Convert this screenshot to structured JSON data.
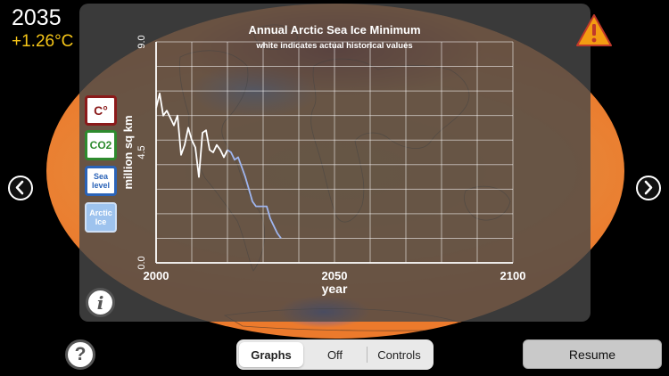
{
  "status": {
    "year": "2035",
    "temperature": "+1.26°C"
  },
  "icons": {
    "warning": "warning-triangle-icon",
    "prev": "chevron-left-icon",
    "next": "chevron-right-icon",
    "info": "info-icon",
    "help": "question-icon"
  },
  "variables": {
    "temp": "C°",
    "co2": "CO2",
    "sea": [
      "Sea",
      "level"
    ],
    "arctic": [
      "Arctic",
      "Ice"
    ]
  },
  "info_label": "i",
  "help_label": "?",
  "segments": {
    "graphs": "Graphs",
    "off": "Off",
    "controls": "Controls",
    "active": "Graphs"
  },
  "resume_label": "Resume",
  "colors": {
    "temperature": "#f5c518",
    "historical_line": "#ffffff",
    "projected_line": "#9fb6f0",
    "warning": "#f39c12"
  },
  "chart_data": {
    "type": "line",
    "title": "Annual Arctic Sea Ice Minimum",
    "subtitle": "white indicates actual historical values",
    "xlabel": "year",
    "ylabel": "million sq km",
    "xlim": [
      2000,
      2100
    ],
    "ylim": [
      0,
      9
    ],
    "xticks": [
      "2000",
      "2050",
      "2100"
    ],
    "yticks": [
      "0.0",
      "4.5",
      "9.0"
    ],
    "grid": true,
    "series": [
      {
        "x": [
          2000,
          2001,
          2002,
          2003,
          2004,
          2005,
          2006,
          2007,
          2008,
          2009,
          2010,
          2011,
          2012,
          2013,
          2014,
          2015,
          2016,
          2017,
          2018,
          2019,
          2020
        ],
        "values": [
          6.3,
          6.9,
          6.0,
          6.2,
          5.9,
          5.6,
          6.0,
          4.4,
          4.8,
          5.5,
          5.0,
          4.7,
          3.5,
          5.3,
          5.4,
          4.6,
          4.5,
          4.8,
          4.6,
          4.3,
          4.6
        ]
      },
      {
        "x": [
          2020,
          2021,
          2022,
          2023,
          2024,
          2025,
          2026,
          2027,
          2028,
          2029,
          2030,
          2031,
          2032,
          2033,
          2034,
          2035
        ],
        "values": [
          4.6,
          4.5,
          4.2,
          4.3,
          3.9,
          3.5,
          3.0,
          2.5,
          2.3,
          2.3,
          2.3,
          2.3,
          1.8,
          1.5,
          1.2,
          1.0
        ]
      }
    ]
  }
}
